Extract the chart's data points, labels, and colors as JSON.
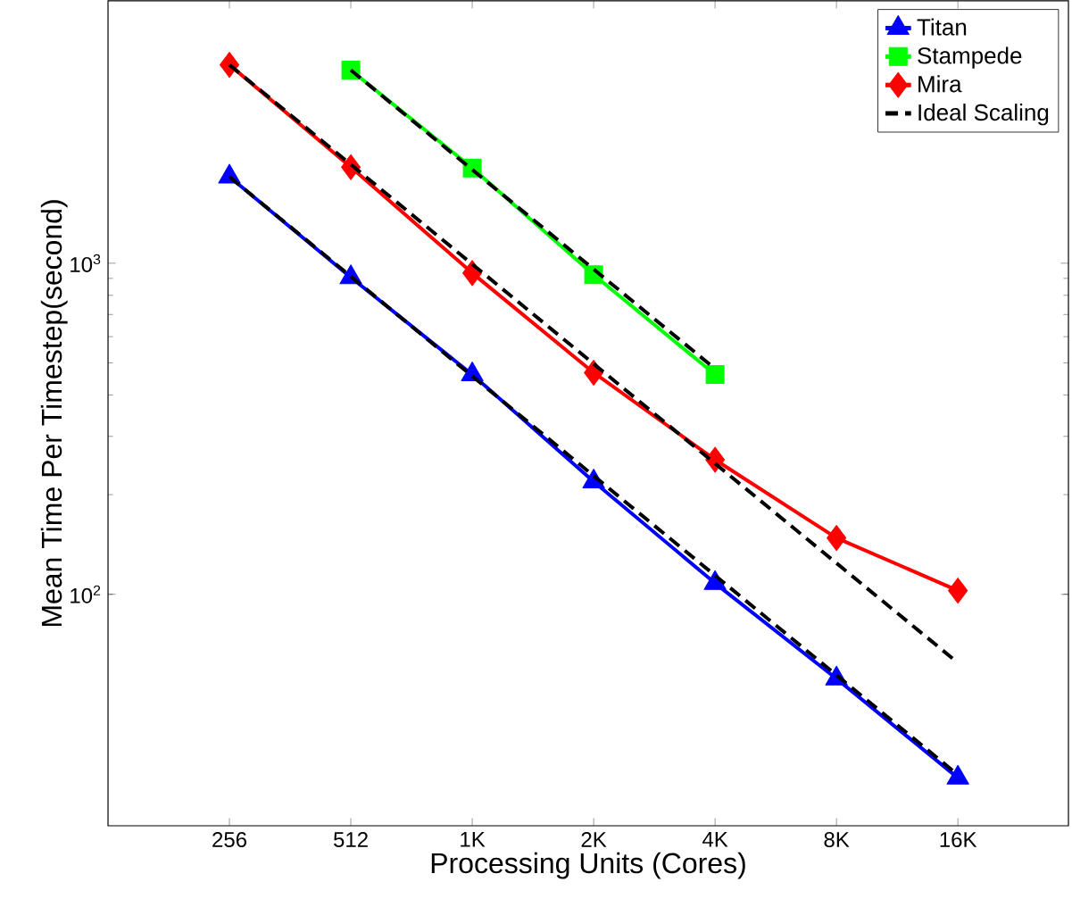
{
  "chart_data": {
    "type": "line",
    "xlabel": "Processing Units (Cores)",
    "ylabel": "Mean Time Per Timestep(second)",
    "log": "xy",
    "xlim": [
      128,
      30800
    ],
    "ylim": [
      20,
      6200
    ],
    "xticks": [
      256,
      512,
      {
        "value": 1024,
        "label": "1K"
      },
      {
        "value": 2048,
        "label": "2K"
      },
      {
        "value": 4096,
        "label": "4K"
      },
      {
        "value": 8192,
        "label": "8K"
      },
      {
        "value": 16384,
        "label": "16K"
      }
    ],
    "yticks": [
      {
        "value": 100,
        "label": "10$^{2}$"
      },
      {
        "value": 1000,
        "label": "10$^{3}$"
      }
    ],
    "grid": false,
    "legend": "top right",
    "series": [
      {
        "name": "Titan",
        "color": "#0000ff",
        "marker": "triangle",
        "line_style": "solid",
        "x": [
          256,
          512,
          1024,
          2048,
          4096,
          8192,
          16384
        ],
        "values": [
          1824,
          906,
          461,
          219,
          108,
          55.6,
          27.9
        ]
      },
      {
        "name": "Stampede",
        "color": "#00ff00",
        "marker": "square",
        "line_style": "solid",
        "x": [
          512,
          1024,
          2048,
          4096
        ],
        "values": [
          3830,
          1940,
          923,
          461
        ]
      },
      {
        "name": "Mira",
        "color": "#ff0000",
        "marker": "diamond",
        "line_style": "solid",
        "x": [
          256,
          512,
          1024,
          2048,
          4096,
          8192,
          16384
        ],
        "values": [
          3975,
          1950,
          934,
          467,
          255,
          148,
          102.6
        ]
      },
      {
        "name": "Ideal Scaling",
        "color": "#000000",
        "marker": "none",
        "line_style": "dashed",
        "x": [
          256,
          16384
        ],
        "values": [
          1824,
          28.5
        ]
      },
      {
        "color": "#000000",
        "marker": "none",
        "line_style": "dashed",
        "x": [
          512,
          4096
        ],
        "values": [
          3830,
          480
        ]
      },
      {
        "color": "#000000",
        "marker": "none",
        "line_style": "dashed",
        "x": [
          256,
          16384
        ],
        "values": [
          3975,
          62.1
        ]
      }
    ]
  }
}
